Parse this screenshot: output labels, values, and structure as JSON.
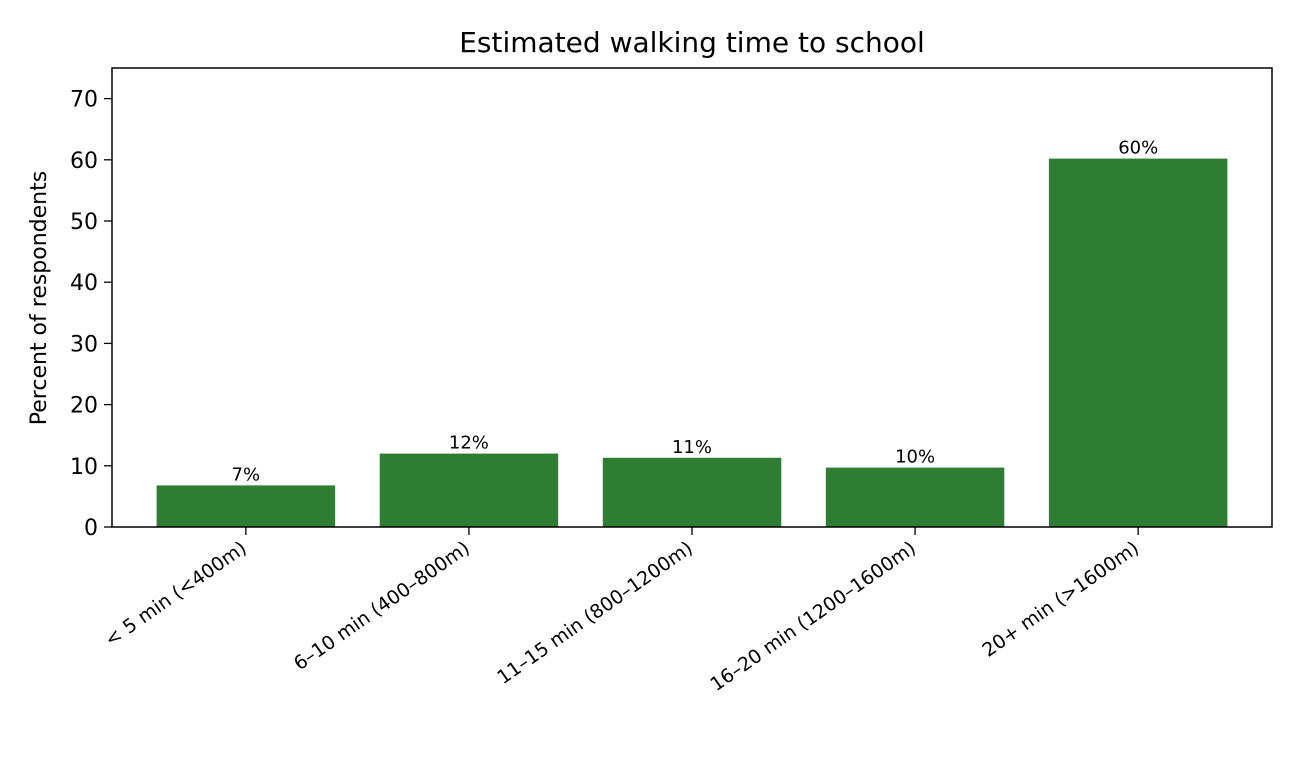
{
  "chart_data": {
    "type": "bar",
    "title": "Estimated walking time to school",
    "xlabel": "",
    "ylabel": "Percent of respondents",
    "categories": [
      "< 5 min (<400m)",
      "6–10 min (400–800m)",
      "11–15 min (800–1200m)",
      "16–20 min (1200–1600m)",
      "20+ min (>1600m)"
    ],
    "values": [
      6.8,
      12.0,
      11.3,
      9.7,
      60.2
    ],
    "data_labels": [
      "7%",
      "12%",
      "11%",
      "10%",
      "60%"
    ],
    "ylim": [
      0,
      75
    ],
    "yticks": [
      0,
      10,
      20,
      30,
      40,
      50,
      60,
      70
    ],
    "grid": false,
    "legend": "none",
    "bar_color": "#2e7d32"
  }
}
